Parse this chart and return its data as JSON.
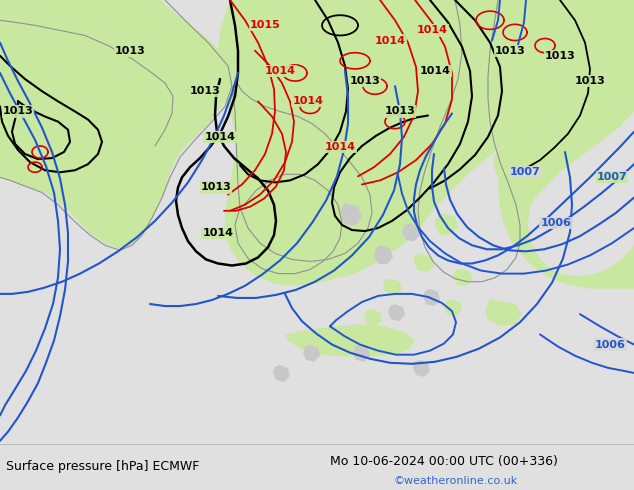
{
  "title_left": "Surface pressure [hPa] ECMWF",
  "title_right": "Mo 10-06-2024 00:00 UTC (00+336)",
  "watermark": "©weatheronline.co.uk",
  "bg_color": "#d8d8d8",
  "land_color": "#c8e8a0",
  "sea_color": "#d8d8d8",
  "black_color": "#000000",
  "red_color": "#dd0000",
  "blue_color": "#2255cc",
  "gray_color": "#909090",
  "footer_bg": "#e0e0e0",
  "watermark_color": "#3366cc",
  "label_fontsize": 8,
  "footer_fontsize": 9,
  "figsize": [
    6.34,
    4.9
  ],
  "dpi": 100
}
